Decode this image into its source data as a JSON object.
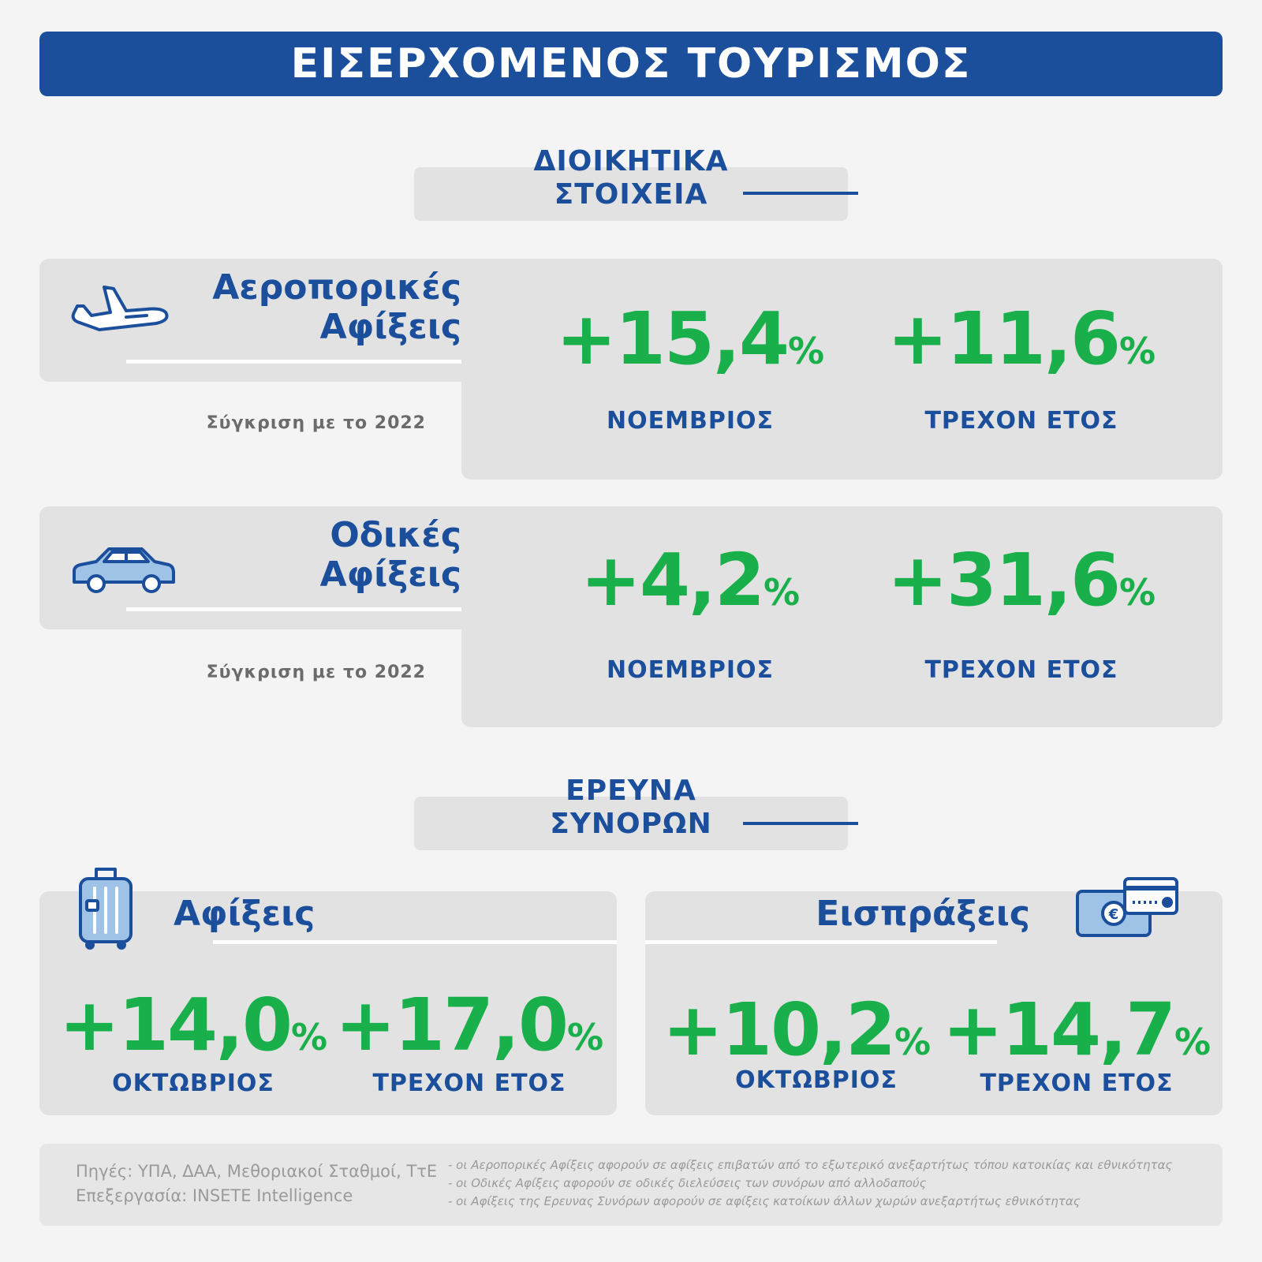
{
  "title": "ΕΙΣΕΡΧΟΜΕΝΟΣ ΤΟΥΡΙΣΜΟΣ",
  "section_admin": {
    "line1": "ΔΙΟΙΚΗΤΙΚΑ",
    "line2": "ΣΤΟΙΧΕΙΑ"
  },
  "air": {
    "title_line1": "Αεροπορικές",
    "title_line2": "Αφίξεις",
    "comparison": "Σύγκριση με το 2022",
    "icon": "airplane-landing-icon",
    "month_value": "+15,4",
    "month_label": "ΝΟΕΜΒΡΙΟΣ",
    "ytd_value": "+11,6",
    "ytd_label": "ΤΡΕΧΟΝ ΕΤΟΣ"
  },
  "road": {
    "title_line1": "Οδικές",
    "title_line2": "Αφίξεις",
    "comparison": "Σύγκριση με το 2022",
    "icon": "car-icon",
    "month_value": "+4,2",
    "month_label": "ΝΟΕΜΒΡΙΟΣ",
    "ytd_value": "+31,6",
    "ytd_label": "ΤΡΕΧΟΝ ΕΤΟΣ"
  },
  "section_survey": {
    "line1": "ΕΡΕΥΝΑ",
    "line2": "ΣΥΝΟΡΩΝ"
  },
  "arrivals": {
    "title": "Αφίξεις",
    "icon": "suitcase-icon",
    "month_value": "+14,0",
    "month_label": "ΟΚΤΩΒΡΙΟΣ",
    "ytd_value": "+17,0",
    "ytd_label": "ΤΡΕΧΟΝ ΕΤΟΣ"
  },
  "receipts": {
    "title": "Εισπράξεις",
    "icon": "money-card-icon",
    "month_value": "+10,2",
    "month_label": "ΟΚΤΩΒΡΙΟΣ",
    "ytd_value": "+14,7",
    "ytd_label": "ΤΡΕΧΟΝ ΕΤΟΣ"
  },
  "percent_sign": "%",
  "footer": {
    "sources": "Πηγές:  ΥΠΑ, ΔΑΑ, Μεθοριακοί Σταθμοί, ΤτΕ",
    "processing": "Επεξεργασία:  INSETE Intelligence",
    "note1": "- οι Αεροπορικές Αφίξεις αφορούν σε αφίξεις επιβατών από το εξωτερικό ανεξαρτήτως τόπου κατοικίας και εθνικότητας",
    "note2": "- οι Οδικές Αφίξεις αφορούν σε οδικές διελεύσεις των συνόρων από αλλοδαπούς",
    "note3": "- οι Αφίξεις της Ερευνας Συνόρων αφορούν σε αφίξεις κατοίκων άλλων χωρών ανεξαρτήτως εθνικότητας"
  },
  "colors": {
    "blue": "#1b4f9c",
    "green": "#19b04b",
    "panel": "#e2e2e2"
  }
}
